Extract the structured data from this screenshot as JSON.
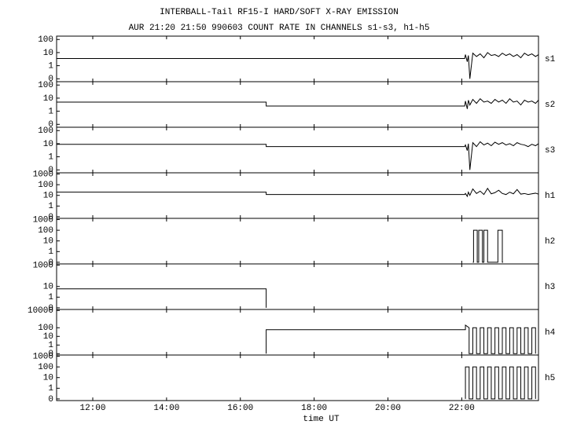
{
  "title": "INTERBALL-Tail RF15-I HARD/SOFT X-RAY EMISSION",
  "subtitle": "AUR 21:20 21:50 990603  COUNT RATE IN CHANNELS s1-s3, h1-h5",
  "chart_data": [
    {
      "type": "line",
      "label": "s1",
      "log": true,
      "color": "#000000",
      "xlim": [
        11.02,
        24.08
      ],
      "xticks": [
        {
          "value": 12,
          "label": "12:00"
        },
        {
          "value": 14,
          "label": "14:00"
        },
        {
          "value": 16,
          "label": "16:00"
        },
        {
          "value": 18,
          "label": "18:00"
        },
        {
          "value": 20,
          "label": "20:00"
        },
        {
          "value": 22,
          "label": "22:00"
        }
      ],
      "ylim": [
        0.06,
        180
      ],
      "yticks": [
        {
          "value": 0.1,
          "label": "0"
        },
        1,
        10,
        100
      ],
      "x": [
        11.02,
        22.08,
        22.1,
        22.15,
        22.18,
        22.22,
        22.3,
        22.4,
        22.5,
        22.6,
        22.7,
        22.8,
        22.9,
        23.0,
        23.1,
        23.2,
        23.3,
        23.4,
        23.5,
        23.6,
        23.7,
        23.8,
        23.9,
        24.0,
        24.08
      ],
      "values": [
        3.5,
        3.5,
        7,
        2,
        6,
        0.1,
        9,
        5,
        8,
        4,
        10,
        6,
        7,
        5,
        9,
        6,
        8,
        5,
        7,
        4,
        9,
        6,
        8,
        5,
        7
      ]
    },
    {
      "type": "line",
      "label": "s2",
      "log": true,
      "color": "#000000",
      "xlim": [
        11.02,
        24.08
      ],
      "xticks": [
        {
          "value": 12,
          "label": "12:00"
        },
        {
          "value": 14,
          "label": "14:00"
        },
        {
          "value": 16,
          "label": "16:00"
        },
        {
          "value": 18,
          "label": "18:00"
        },
        {
          "value": 20,
          "label": "20:00"
        },
        {
          "value": 22,
          "label": "22:00"
        }
      ],
      "ylim": [
        0.06,
        180
      ],
      "yticks": [
        {
          "value": 0.1,
          "label": "0"
        },
        1,
        10,
        100
      ],
      "x": [
        11.02,
        16.7,
        16.7,
        22.08,
        22.1,
        22.15,
        22.18,
        22.22,
        22.3,
        22.4,
        22.5,
        22.6,
        22.7,
        22.8,
        22.9,
        23.0,
        23.1,
        23.2,
        23.3,
        23.4,
        23.5,
        23.6,
        23.7,
        23.8,
        23.9,
        24.0,
        24.08
      ],
      "values": [
        5,
        5,
        2.5,
        2.5,
        6,
        1.5,
        7,
        3,
        8,
        4,
        9,
        5,
        6,
        4,
        8,
        5,
        7,
        4,
        9,
        5,
        6,
        3,
        7,
        5,
        6,
        4,
        7
      ]
    },
    {
      "type": "line",
      "label": "s3",
      "log": true,
      "color": "#000000",
      "xlim": [
        11.02,
        24.08
      ],
      "xticks": [
        {
          "value": 12,
          "label": "12:00"
        },
        {
          "value": 14,
          "label": "14:00"
        },
        {
          "value": 16,
          "label": "16:00"
        },
        {
          "value": 18,
          "label": "18:00"
        },
        {
          "value": 20,
          "label": "20:00"
        },
        {
          "value": 22,
          "label": "22:00"
        }
      ],
      "ylim": [
        0.06,
        180
      ],
      "yticks": [
        {
          "value": 0.1,
          "label": "0"
        },
        1,
        10,
        100
      ],
      "x": [
        11.02,
        16.7,
        16.7,
        22.08,
        22.1,
        22.15,
        22.18,
        22.22,
        22.3,
        22.4,
        22.5,
        22.6,
        22.7,
        22.8,
        22.9,
        23.0,
        23.1,
        23.2,
        23.3,
        23.4,
        23.5,
        23.6,
        23.7,
        23.8,
        23.9,
        24.0,
        24.08
      ],
      "values": [
        9,
        9,
        6,
        6,
        8,
        3,
        10,
        0.1,
        12,
        6,
        14,
        8,
        11,
        7,
        13,
        9,
        12,
        8,
        10,
        7,
        12,
        9,
        8,
        6,
        9,
        7,
        10
      ]
    },
    {
      "type": "line",
      "label": "h1",
      "log": true,
      "color": "#000000",
      "xlim": [
        11.02,
        24.08
      ],
      "xticks": [
        {
          "value": 12,
          "label": "12:00"
        },
        {
          "value": 14,
          "label": "14:00"
        },
        {
          "value": 16,
          "label": "16:00"
        },
        {
          "value": 18,
          "label": "18:00"
        },
        {
          "value": 20,
          "label": "20:00"
        },
        {
          "value": 22,
          "label": "22:00"
        }
      ],
      "ylim": [
        0.07,
        1300
      ],
      "yticks": [
        {
          "value": 0.1,
          "label": "0"
        },
        1,
        10,
        100,
        1000
      ],
      "x": [
        11.02,
        16.7,
        16.7,
        22.08,
        22.1,
        22.15,
        22.18,
        22.22,
        22.3,
        22.4,
        22.5,
        22.6,
        22.7,
        22.8,
        22.9,
        23.0,
        23.1,
        23.2,
        23.3,
        23.4,
        23.5,
        23.6,
        23.7,
        23.8,
        23.9,
        24.0,
        24.08
      ],
      "values": [
        20,
        20,
        12,
        12,
        15,
        8,
        20,
        10,
        40,
        15,
        25,
        12,
        45,
        14,
        18,
        30,
        15,
        12,
        20,
        14,
        35,
        13,
        15,
        12,
        14,
        16,
        13
      ]
    },
    {
      "type": "line",
      "label": "h2",
      "log": true,
      "color": "#000000",
      "xlim": [
        11.02,
        24.08
      ],
      "xticks": [
        {
          "value": 12,
          "label": "12:00"
        },
        {
          "value": 14,
          "label": "14:00"
        },
        {
          "value": 16,
          "label": "16:00"
        },
        {
          "value": 18,
          "label": "18:00"
        },
        {
          "value": 20,
          "label": "20:00"
        },
        {
          "value": 22,
          "label": "22:00"
        }
      ],
      "ylim": [
        0.07,
        1300
      ],
      "yticks": [
        {
          "value": 0.1,
          "label": "0"
        },
        1,
        10,
        100,
        1000
      ],
      "x": [
        22.3,
        22.32,
        22.32,
        22.42,
        22.42,
        22.46,
        22.46,
        22.56,
        22.56,
        22.6,
        22.6,
        22.7,
        22.7,
        22.98,
        22.98,
        23.1,
        23.1,
        23.12
      ],
      "values": [
        0.1,
        0.1,
        100,
        100,
        0.1,
        0.1,
        100,
        100,
        0.1,
        0.1,
        100,
        100,
        0.1,
        0.1,
        100,
        100,
        0.1,
        0.1
      ]
    },
    {
      "type": "line",
      "label": "h3",
      "log": true,
      "color": "#000000",
      "xlim": [
        11.02,
        24.08
      ],
      "xticks": [
        {
          "value": 12,
          "label": "12:00"
        },
        {
          "value": 14,
          "label": "14:00"
        },
        {
          "value": 16,
          "label": "16:00"
        },
        {
          "value": 18,
          "label": "18:00"
        },
        {
          "value": 20,
          "label": "20:00"
        },
        {
          "value": 22,
          "label": "22:00"
        }
      ],
      "ylim": [
        0.07,
        1300
      ],
      "yticks": [
        {
          "value": 0.1,
          "label": "0"
        },
        1,
        10,
        1000
      ],
      "x": [
        11.02,
        16.7,
        16.7
      ],
      "values": [
        6,
        6,
        0.1
      ]
    },
    {
      "type": "line",
      "label": "h4",
      "log": true,
      "color": "#000000",
      "xlim": [
        11.02,
        24.08
      ],
      "xticks": [
        {
          "value": 12,
          "label": "12:00"
        },
        {
          "value": 14,
          "label": "14:00"
        },
        {
          "value": 16,
          "label": "16:00"
        },
        {
          "value": 18,
          "label": "18:00"
        },
        {
          "value": 20,
          "label": "20:00"
        },
        {
          "value": 22,
          "label": "22:00"
        }
      ],
      "ylim": [
        0.07,
        13000
      ],
      "yticks": [
        {
          "value": 0.1,
          "label": "0"
        },
        1,
        10,
        100,
        10000
      ],
      "x": [
        16.7,
        16.7,
        22.1,
        22.1,
        22.2,
        22.2,
        22.3,
        22.3,
        22.4,
        22.4,
        22.5,
        22.5,
        22.6,
        22.6,
        22.7,
        22.7,
        22.8,
        22.8,
        22.9,
        22.9,
        23.0,
        23.0,
        23.1,
        23.1,
        23.2,
        23.2,
        23.3,
        23.3,
        23.4,
        23.4,
        23.5,
        23.5,
        23.6,
        23.6,
        23.7,
        23.7,
        23.8,
        23.8,
        23.9,
        23.9,
        24.0,
        24.0
      ],
      "values": [
        0.1,
        60,
        60,
        200,
        100,
        0.1,
        0.1,
        100,
        100,
        0.1,
        0.1,
        100,
        100,
        0.1,
        0.1,
        100,
        100,
        0.1,
        0.1,
        100,
        100,
        0.1,
        0.1,
        100,
        100,
        0.1,
        0.1,
        100,
        100,
        0.1,
        0.1,
        100,
        100,
        0.1,
        0.1,
        100,
        100,
        0.1,
        0.1,
        100,
        100,
        0.1
      ]
    },
    {
      "type": "line",
      "label": "h5",
      "log": true,
      "color": "#000000",
      "xlabel": "time UT",
      "xlim": [
        11.02,
        24.08
      ],
      "xticks": [
        {
          "value": 12,
          "label": "12:00"
        },
        {
          "value": 14,
          "label": "14:00"
        },
        {
          "value": 16,
          "label": "16:00"
        },
        {
          "value": 18,
          "label": "18:00"
        },
        {
          "value": 20,
          "label": "20:00"
        },
        {
          "value": 22,
          "label": "22:00"
        }
      ],
      "ylim": [
        0.07,
        1300
      ],
      "yticks": [
        {
          "value": 0.1,
          "label": "0"
        },
        1,
        10,
        100,
        1000
      ],
      "x": [
        22.1,
        22.1,
        22.2,
        22.2,
        22.3,
        22.3,
        22.4,
        22.4,
        22.5,
        22.5,
        22.6,
        22.6,
        22.7,
        22.7,
        22.8,
        22.8,
        22.9,
        22.9,
        23.0,
        23.0,
        23.1,
        23.1,
        23.2,
        23.2,
        23.3,
        23.3,
        23.4,
        23.4,
        23.5,
        23.5,
        23.6,
        23.6,
        23.7,
        23.7,
        23.8,
        23.8,
        23.9,
        23.9,
        24.0,
        24.0
      ],
      "values": [
        0.1,
        100,
        100,
        0.1,
        0.1,
        100,
        100,
        0.1,
        0.1,
        100,
        100,
        0.1,
        0.1,
        100,
        100,
        0.1,
        0.1,
        100,
        100,
        0.1,
        0.1,
        100,
        100,
        0.1,
        0.1,
        100,
        100,
        0.1,
        0.1,
        100,
        100,
        0.1,
        0.1,
        100,
        100,
        0.1,
        0.1,
        100,
        100,
        0.1
      ]
    }
  ]
}
